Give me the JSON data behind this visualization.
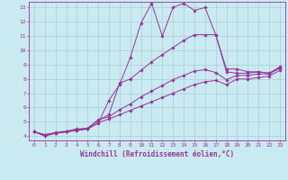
{
  "bg_color": "#c8eaf0",
  "grid_color": "#aaccd8",
  "line_color": "#993399",
  "xlim": [
    -0.5,
    23.5
  ],
  "ylim": [
    3.7,
    13.4
  ],
  "xticks": [
    0,
    1,
    2,
    3,
    4,
    5,
    6,
    7,
    8,
    9,
    10,
    11,
    12,
    13,
    14,
    15,
    16,
    17,
    18,
    19,
    20,
    21,
    22,
    23
  ],
  "yticks": [
    4,
    5,
    6,
    7,
    8,
    9,
    10,
    11,
    12,
    13
  ],
  "xlabel": "Windchill (Refroidissement éolien,°C)",
  "series": [
    {
      "x": [
        0,
        1,
        2,
        3,
        4,
        5,
        6,
        7,
        8,
        9,
        10,
        11,
        12,
        13,
        14,
        15,
        16,
        17,
        18,
        19,
        20,
        21,
        22,
        23
      ],
      "y": [
        4.3,
        4.0,
        4.2,
        4.3,
        4.4,
        4.5,
        4.9,
        6.5,
        7.6,
        9.5,
        11.9,
        13.3,
        11.0,
        13.0,
        13.3,
        12.8,
        13.0,
        11.1,
        8.7,
        8.7,
        8.5,
        8.5,
        8.4,
        8.85
      ]
    },
    {
      "x": [
        0,
        1,
        2,
        3,
        4,
        5,
        6,
        7,
        8,
        9,
        10,
        11,
        12,
        13,
        14,
        15,
        16,
        17,
        18,
        19,
        20,
        21,
        22,
        23
      ],
      "y": [
        4.3,
        4.1,
        4.2,
        4.3,
        4.45,
        4.55,
        5.1,
        5.5,
        7.7,
        8.0,
        8.6,
        9.2,
        9.7,
        10.2,
        10.7,
        11.1,
        11.1,
        11.1,
        8.5,
        8.4,
        8.4,
        8.5,
        8.4,
        8.8
      ]
    },
    {
      "x": [
        0,
        1,
        2,
        3,
        4,
        5,
        6,
        7,
        8,
        9,
        10,
        11,
        12,
        13,
        14,
        15,
        16,
        17,
        18,
        19,
        20,
        21,
        22,
        23
      ],
      "y": [
        4.3,
        4.1,
        4.25,
        4.35,
        4.5,
        4.55,
        5.15,
        5.35,
        5.85,
        6.25,
        6.75,
        7.15,
        7.55,
        7.95,
        8.25,
        8.55,
        8.65,
        8.45,
        7.95,
        8.25,
        8.25,
        8.35,
        8.35,
        8.75
      ]
    },
    {
      "x": [
        0,
        1,
        2,
        3,
        4,
        5,
        6,
        7,
        8,
        9,
        10,
        11,
        12,
        13,
        14,
        15,
        16,
        17,
        18,
        19,
        20,
        21,
        22,
        23
      ],
      "y": [
        4.3,
        4.05,
        4.2,
        4.3,
        4.4,
        4.5,
        4.95,
        5.2,
        5.5,
        5.8,
        6.1,
        6.4,
        6.7,
        7.0,
        7.3,
        7.6,
        7.8,
        7.9,
        7.6,
        8.0,
        8.0,
        8.1,
        8.2,
        8.6
      ]
    }
  ],
  "marker": "D",
  "markersize": 1.8,
  "linewidth": 0.7,
  "tick_fontsize": 4.5,
  "label_fontsize": 5.5
}
